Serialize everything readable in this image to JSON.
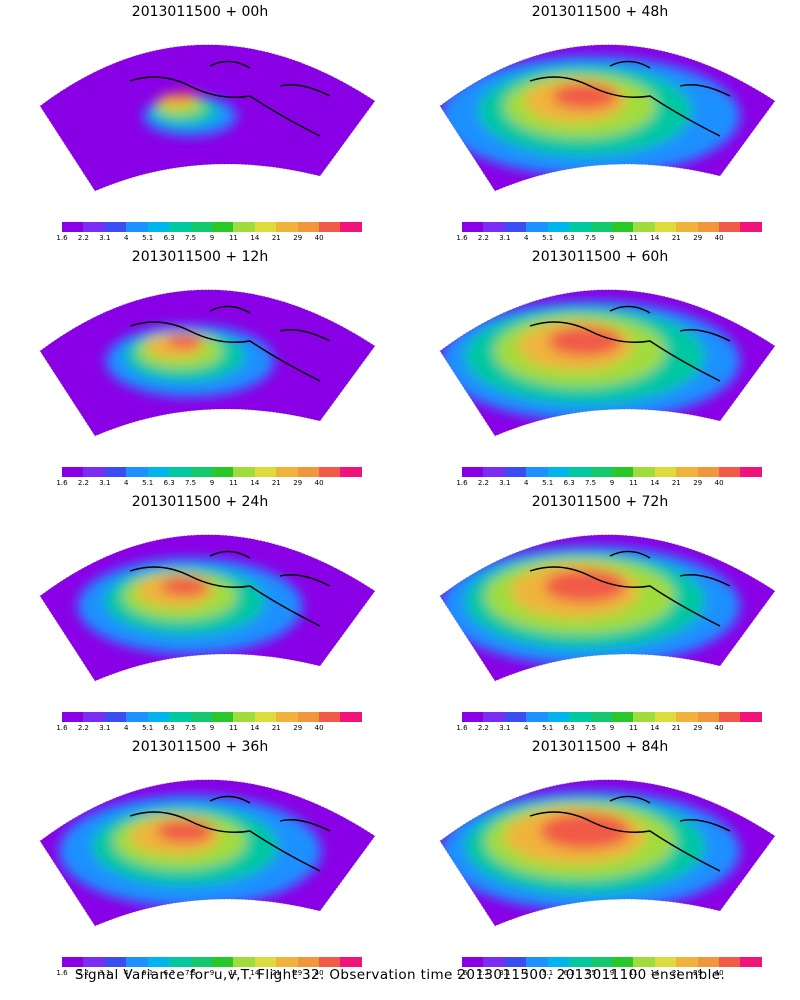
{
  "panels": [
    {
      "title": "2013011500 + 00h",
      "intensity": 0.5
    },
    {
      "title": "2013011500 + 48h",
      "intensity": 1.6
    },
    {
      "title": "2013011500 + 12h",
      "intensity": 0.9
    },
    {
      "title": "2013011500 + 60h",
      "intensity": 1.8
    },
    {
      "title": "2013011500 + 24h",
      "intensity": 1.2
    },
    {
      "title": "2013011500 + 72h",
      "intensity": 2.0
    },
    {
      "title": "2013011500 + 36h",
      "intensity": 1.4
    },
    {
      "title": "2013011500 + 84h",
      "intensity": 2.2
    }
  ],
  "colorbar": {
    "labels": [
      "1.6",
      "2.2",
      "3.1",
      "4",
      "5.1",
      "6.3",
      "7.5",
      "9",
      "11",
      "14",
      "21",
      "29",
      "40"
    ],
    "colors": [
      "#8a00e6",
      "#7a2cf0",
      "#3a4cf2",
      "#1e90ff",
      "#00b4ec",
      "#00c8a0",
      "#14c86e",
      "#28c828",
      "#a0dc3c",
      "#dcdc3c",
      "#f0b43c",
      "#f0963c",
      "#f05a46",
      "#f0147a"
    ]
  },
  "footer": "Signal Variance for u,v,T. Flight 32. Observation time 2013011500. 2013011100 ensemble."
}
